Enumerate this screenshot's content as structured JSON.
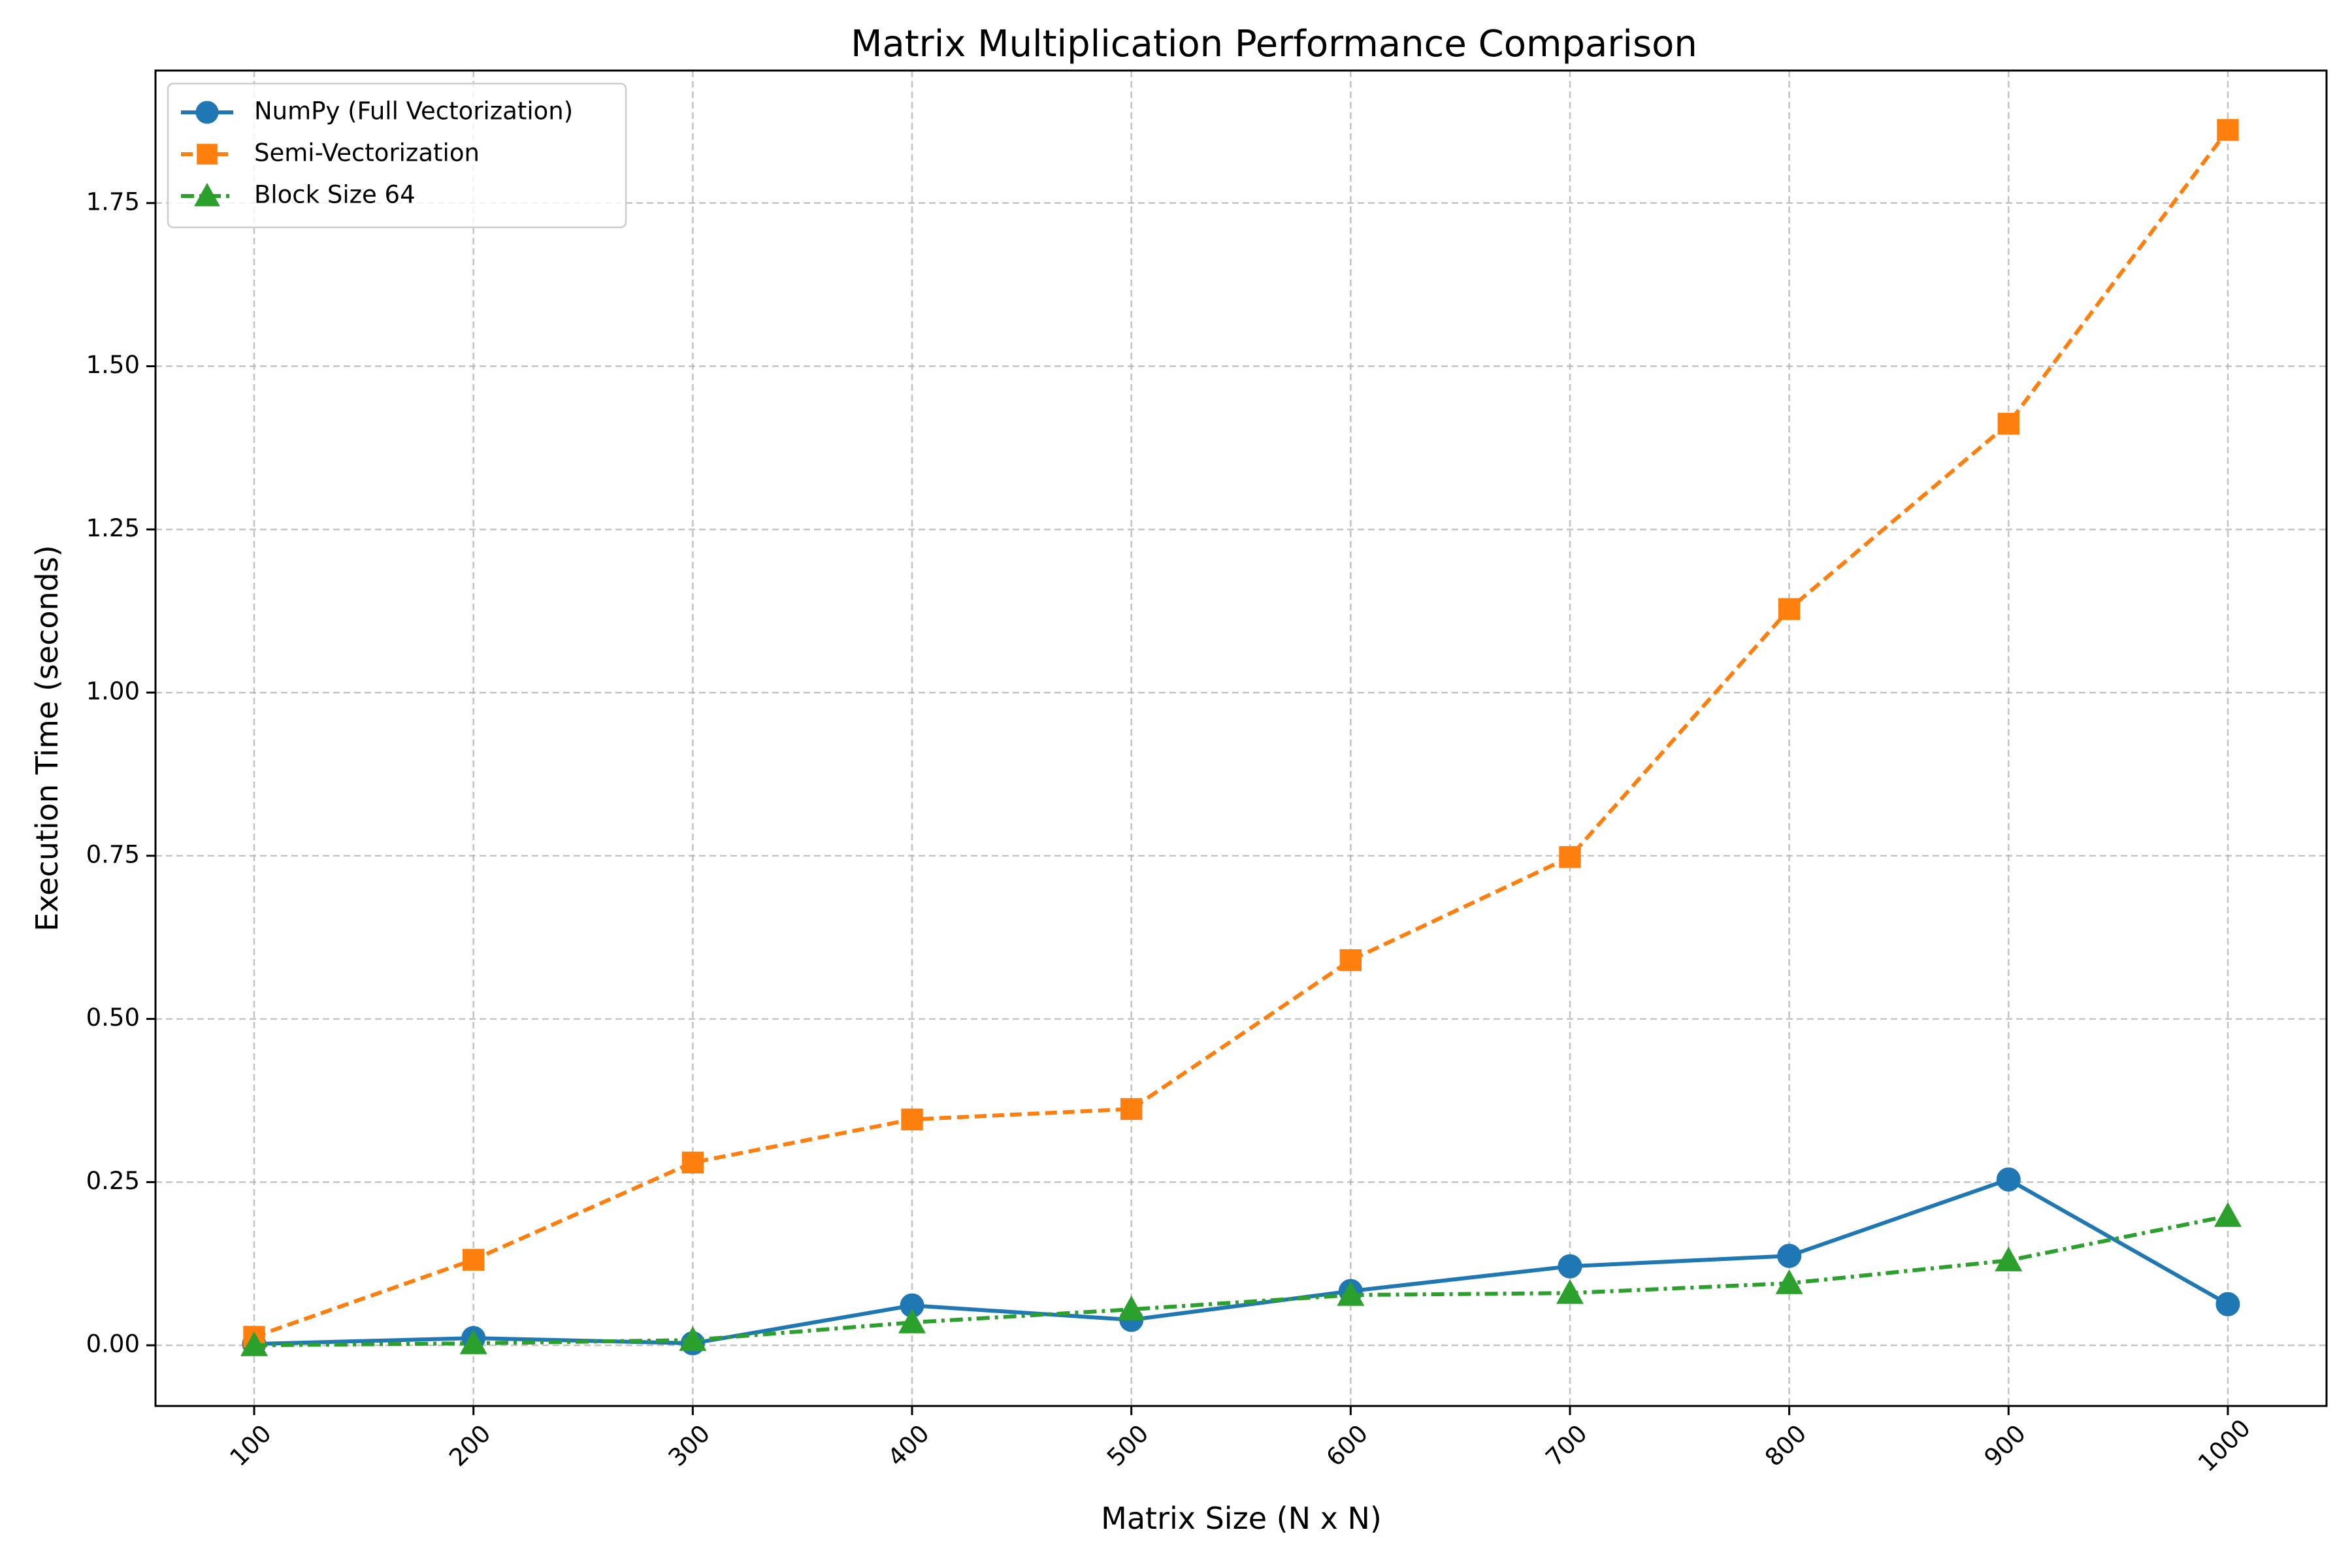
{
  "chart_data": {
    "type": "line",
    "title": "Matrix Multiplication Performance Comparison",
    "xlabel": "Matrix Size (N x N)",
    "ylabel": "Execution Time (seconds)",
    "x": [
      100,
      200,
      300,
      400,
      500,
      600,
      700,
      800,
      900,
      1000
    ],
    "x_tick_labels": [
      "100",
      "200",
      "300",
      "400",
      "500",
      "600",
      "700",
      "800",
      "900",
      "1000"
    ],
    "y_tick_values": [
      0.0,
      0.25,
      0.5,
      0.75,
      1.0,
      1.25,
      1.5,
      1.75
    ],
    "y_tick_labels": [
      "0.00",
      "0.25",
      "0.50",
      "0.75",
      "1.00",
      "1.25",
      "1.50",
      "1.75"
    ],
    "xlim": [
      55,
      1045
    ],
    "ylim": [
      -0.093,
      1.953
    ],
    "grid": true,
    "legend_position": "upper-left",
    "series": [
      {
        "name": "NumPy (Full Vectorization)",
        "color": "#1f77b4",
        "marker": "circle",
        "line_style": "solid",
        "values": [
          0.002,
          0.011,
          0.003,
          0.061,
          0.039,
          0.083,
          0.121,
          0.137,
          0.254,
          0.063
        ]
      },
      {
        "name": "Semi-Vectorization",
        "color": "#ff7f0e",
        "marker": "square",
        "line_style": "dashed",
        "values": [
          0.013,
          0.131,
          0.28,
          0.346,
          0.362,
          0.59,
          0.748,
          1.128,
          1.412,
          1.862
        ]
      },
      {
        "name": "Block Size 64",
        "color": "#2ca02c",
        "marker": "triangle",
        "line_style": "dashdot",
        "values": [
          0.0,
          0.003,
          0.008,
          0.035,
          0.055,
          0.077,
          0.08,
          0.095,
          0.13,
          0.198
        ]
      }
    ]
  }
}
